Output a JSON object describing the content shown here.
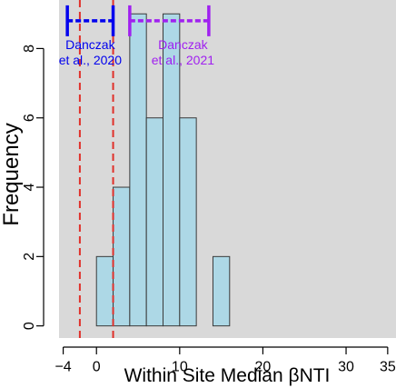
{
  "chart_data": {
    "type": "bar",
    "title": "",
    "xlabel": "Within Site Median βNTI",
    "ylabel": "Frequency",
    "xlim": [
      -4.5,
      36
    ],
    "ylim": [
      -0.35,
      9.4
    ],
    "x_ticks": [
      -4,
      0,
      10,
      20,
      30,
      35
    ],
    "x_tick_labels": [
      "−4",
      "0",
      "10",
      "20",
      "30",
      "35"
    ],
    "y_ticks": [
      0,
      2,
      4,
      6,
      8
    ],
    "y_tick_labels": [
      "0",
      "2",
      "4",
      "6",
      "8"
    ],
    "grid": false,
    "background": "#d9d9d9",
    "bar_fill": "#add8e6",
    "bins": [
      {
        "x0": 0,
        "x1": 2,
        "count": 2
      },
      {
        "x0": 2,
        "x1": 4,
        "count": 4
      },
      {
        "x0": 4,
        "x1": 6,
        "count": 9
      },
      {
        "x0": 6,
        "x1": 8,
        "count": 6
      },
      {
        "x0": 8,
        "x1": 10,
        "count": 9
      },
      {
        "x0": 10,
        "x1": 12,
        "count": 6
      },
      {
        "x0": 12,
        "x1": 14,
        "count": 0
      },
      {
        "x0": 14,
        "x1": 16,
        "count": 2
      }
    ],
    "reference_lines": [
      {
        "x": -2,
        "color": "#e0302a",
        "style": "dashed"
      },
      {
        "x": 2,
        "color": "#e0302a",
        "style": "dashed"
      }
    ],
    "ranges": [
      {
        "label_line1": "Danczak",
        "label_line2": "et al., 2020",
        "x0": -3.5,
        "x1": 2,
        "y": 8.8,
        "color": "#0000ee"
      },
      {
        "label_line1": "Danczak",
        "label_line2": "et al., 2021",
        "x0": 4,
        "x1": 13.5,
        "y": 8.8,
        "color": "#a020f0"
      }
    ]
  }
}
